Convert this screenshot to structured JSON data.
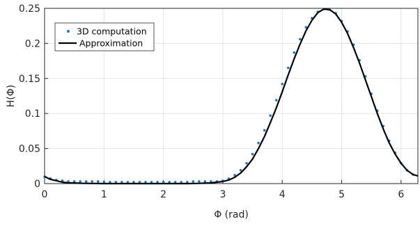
{
  "chart_data": {
    "type": "line",
    "xlabel": "Φ (rad)",
    "ylabel": "H(Φ)",
    "xlim": [
      0,
      6.2832
    ],
    "ylim": [
      0,
      0.25
    ],
    "xticks": [
      0,
      1,
      2,
      3,
      4,
      5,
      6
    ],
    "xtick_labels": [
      "0",
      "1",
      "2",
      "3",
      "4",
      "5",
      "6"
    ],
    "yticks": [
      0,
      0.05,
      0.1,
      0.15,
      0.2,
      0.25
    ],
    "ytick_labels": [
      "0",
      "0.05",
      "0.1",
      "0.15",
      "0.2",
      "0.25"
    ],
    "grid": true,
    "legend_position": "top-left",
    "series": [
      {
        "name": "3D computation",
        "style": "points",
        "color": "#1f77b4",
        "x": [
          0.0,
          0.1,
          0.2,
          0.3,
          0.4,
          0.5,
          0.6,
          0.7,
          0.8,
          0.9,
          1.0,
          1.1,
          1.2,
          1.3,
          1.4,
          1.5,
          1.6,
          1.7,
          1.8,
          1.9,
          2.0,
          2.1,
          2.2,
          2.3,
          2.4,
          2.5,
          2.6,
          2.7,
          2.8,
          2.9,
          3.0,
          3.1,
          3.2,
          3.3,
          3.4,
          3.5,
          3.6,
          3.7,
          3.8,
          3.9,
          4.0,
          4.1,
          4.2,
          4.3,
          4.4,
          4.5,
          4.6,
          4.7,
          4.8,
          4.9,
          5.0,
          5.1,
          5.2,
          5.3,
          5.4,
          5.5,
          5.6,
          5.7,
          5.8,
          5.9,
          6.0,
          6.1,
          6.2
        ],
        "y": [
          0.01,
          0.007,
          0.005,
          0.004,
          0.003,
          0.003,
          0.003,
          0.003,
          0.003,
          0.003,
          0.002,
          0.002,
          0.002,
          0.002,
          0.002,
          0.002,
          0.002,
          0.002,
          0.002,
          0.002,
          0.002,
          0.002,
          0.002,
          0.002,
          0.002,
          0.003,
          0.003,
          0.003,
          0.003,
          0.003,
          0.004,
          0.007,
          0.012,
          0.019,
          0.029,
          0.042,
          0.058,
          0.076,
          0.097,
          0.119,
          0.142,
          0.165,
          0.187,
          0.206,
          0.223,
          0.236,
          0.245,
          0.249,
          0.248,
          0.243,
          0.232,
          0.217,
          0.198,
          0.176,
          0.153,
          0.128,
          0.104,
          0.082,
          0.061,
          0.044,
          0.029,
          0.019,
          0.013
        ]
      },
      {
        "name": "Approximation",
        "style": "line",
        "color": "#000000",
        "x": [
          0.0,
          0.1,
          0.2,
          0.3,
          0.4,
          0.5,
          0.6,
          0.7,
          0.8,
          0.9,
          1.0,
          1.2,
          1.4,
          1.6,
          1.8,
          2.0,
          2.2,
          2.4,
          2.6,
          2.8,
          2.9,
          3.0,
          3.1,
          3.2,
          3.3,
          3.4,
          3.5,
          3.6,
          3.7,
          3.8,
          3.9,
          4.0,
          4.1,
          4.2,
          4.3,
          4.4,
          4.5,
          4.6,
          4.7,
          4.8,
          4.9,
          5.0,
          5.1,
          5.2,
          5.3,
          5.4,
          5.5,
          5.6,
          5.7,
          5.8,
          5.9,
          6.0,
          6.1,
          6.2,
          6.28
        ],
        "y": [
          0.01,
          0.006,
          0.004,
          0.002,
          0.001,
          0.001,
          0.0005,
          0.0003,
          0.0002,
          0.0001,
          0.0,
          0.0,
          0.0,
          0.0,
          0.0,
          0.0,
          0.0,
          0.0,
          0.0003,
          0.001,
          0.002,
          0.003,
          0.005,
          0.009,
          0.015,
          0.024,
          0.035,
          0.05,
          0.067,
          0.087,
          0.108,
          0.131,
          0.155,
          0.178,
          0.199,
          0.218,
          0.233,
          0.244,
          0.249,
          0.248,
          0.242,
          0.23,
          0.214,
          0.194,
          0.172,
          0.148,
          0.124,
          0.1,
          0.078,
          0.058,
          0.042,
          0.029,
          0.019,
          0.013,
          0.011
        ]
      }
    ]
  }
}
